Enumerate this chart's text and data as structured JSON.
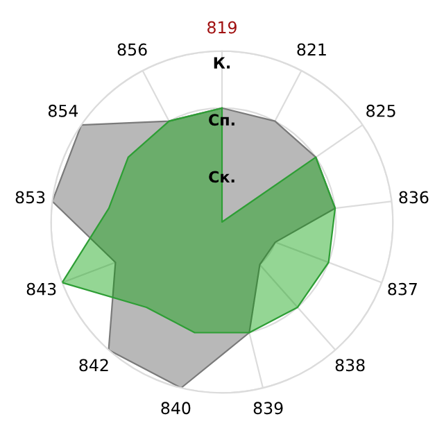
{
  "chart_data": {
    "type": "radar",
    "categories": [
      "819",
      "821",
      "825",
      "836",
      "837",
      "838",
      "839",
      "840",
      "842",
      "843",
      "853",
      "854",
      "856"
    ],
    "series": [
      {
        "color": "#b8b8b8",
        "values": [
          2,
          2,
          2,
          2,
          1,
          1,
          2,
          3,
          3,
          2,
          3,
          3,
          2
        ]
      },
      {
        "color": "#009d00",
        "values": [
          2,
          0,
          2,
          2,
          2,
          2,
          2,
          2,
          2,
          3,
          2,
          2,
          2
        ]
      }
    ],
    "ylim": [
      0,
      3
    ],
    "yticks": [
      {
        "value": 1,
        "label": "Ск."
      },
      {
        "value": 2,
        "label": "Сп."
      },
      {
        "value": 3,
        "label": "К."
      }
    ],
    "grid": true,
    "legend": false
  }
}
